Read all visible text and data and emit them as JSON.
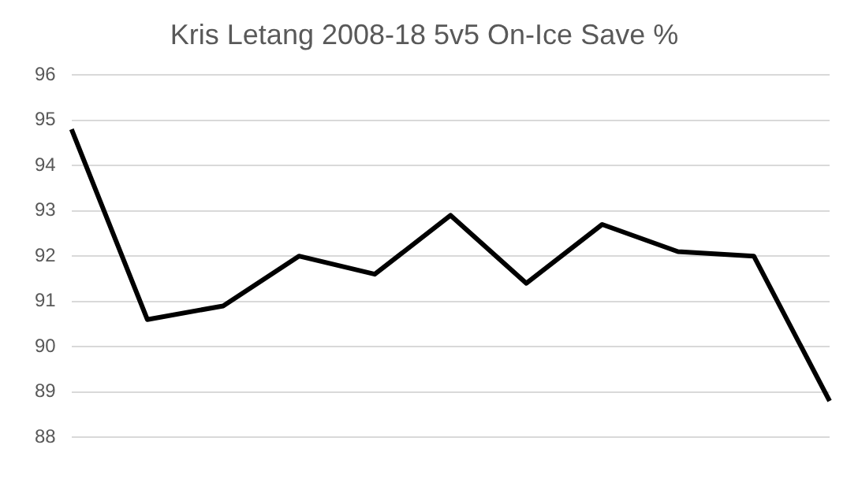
{
  "chart_data": {
    "type": "line",
    "title": "Kris Letang 2008-18 5v5 On-Ice Save %",
    "categories": [
      null,
      null,
      null,
      null,
      null,
      null,
      null,
      null,
      null,
      null,
      null
    ],
    "series": [
      {
        "color": "#000000",
        "values": [
          94.8,
          90.6,
          90.9,
          92.0,
          91.6,
          92.9,
          91.4,
          92.7,
          92.1,
          92.0,
          88.8
        ]
      }
    ],
    "ylim": [
      88,
      96
    ],
    "yticks": [
      88,
      89,
      90,
      91,
      92,
      93,
      94,
      95,
      96
    ],
    "grid": "y",
    "legend": false,
    "marker": "none",
    "line_style": "solid"
  }
}
